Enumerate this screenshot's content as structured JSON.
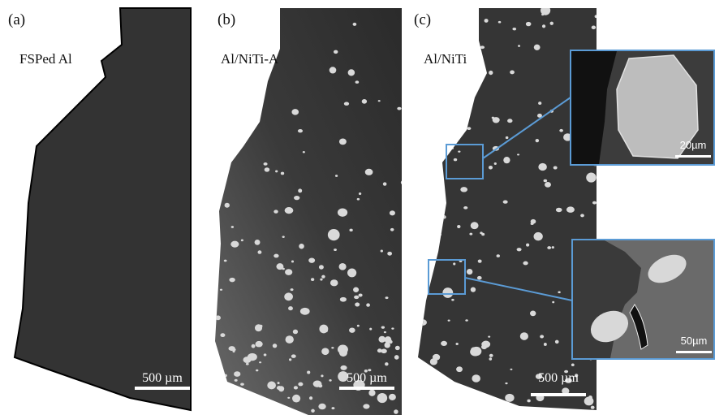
{
  "panels": [
    {
      "label": "(a)",
      "sample": "FSPed Al",
      "scale_bar": "500 µm"
    },
    {
      "label": "(b)",
      "sample": "Al/NiTi-A",
      "scale_bar": "500 µm"
    },
    {
      "label": "(c)",
      "sample": "Al/NiTi",
      "scale_bar": "500 µm",
      "insets": [
        {
          "scale_bar": "20µm"
        },
        {
          "scale_bar": "50µm"
        }
      ]
    }
  ]
}
